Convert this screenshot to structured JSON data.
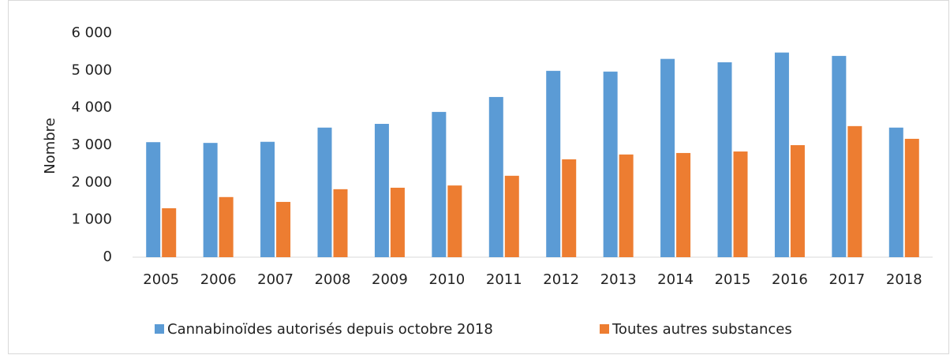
{
  "chart_data": {
    "type": "bar",
    "y_label": "Nombre",
    "categories": [
      "2005",
      "2006",
      "2007",
      "2008",
      "2009",
      "2010",
      "2011",
      "2012",
      "2013",
      "2014",
      "2015",
      "2016",
      "2017",
      "2018"
    ],
    "series": [
      {
        "name": "Cannabinoïdes autorisés depuis octobre 2018",
        "color": "#5b9bd5",
        "values": [
          3080,
          3060,
          3090,
          3470,
          3570,
          3890,
          4290,
          4990,
          4970,
          5310,
          5220,
          5480,
          5390,
          3470
        ]
      },
      {
        "name": "Toutes autres substances",
        "color": "#ed7d31",
        "values": [
          1310,
          1610,
          1480,
          1820,
          1860,
          1920,
          2180,
          2620,
          2750,
          2790,
          2830,
          3000,
          3510,
          3170
        ]
      }
    ],
    "ylim": [
      0,
      6000
    ],
    "yticks": [
      0,
      {
        "value": 1000,
        "label": "1 000"
      },
      {
        "value": 2000,
        "label": "2 000"
      },
      {
        "value": 3000,
        "label": "3 000"
      },
      {
        "value": 4000,
        "label": "4 000"
      },
      {
        "value": 5000,
        "label": "5 000"
      },
      {
        "value": 6000,
        "label": "6 000"
      }
    ],
    "legend": "bottom"
  }
}
